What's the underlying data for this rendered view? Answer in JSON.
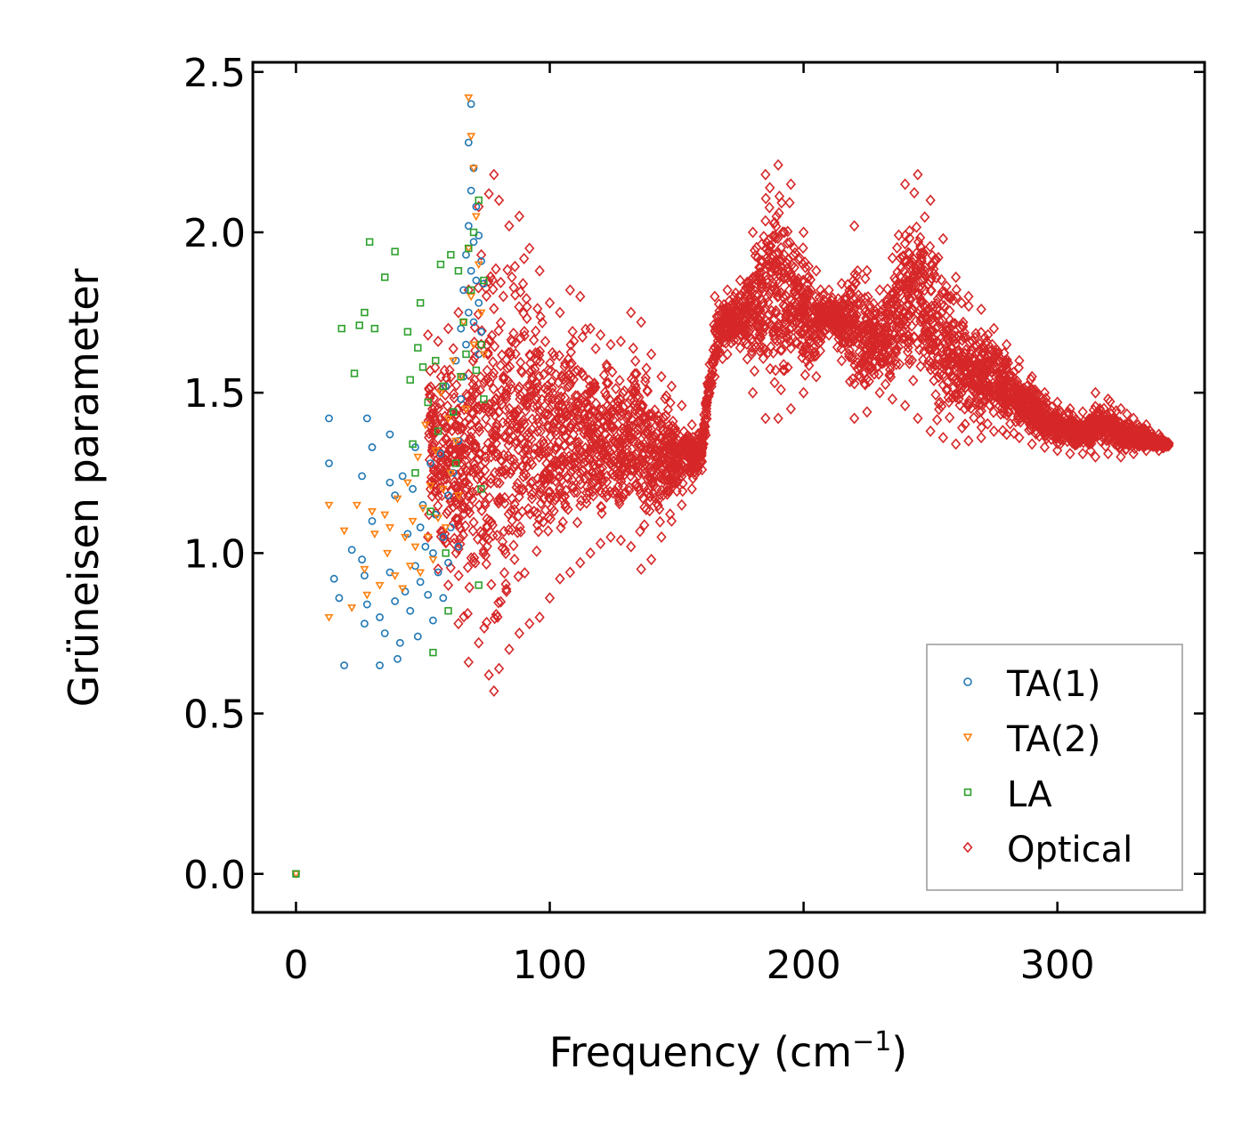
{
  "chart_data": {
    "type": "scatter",
    "title": "",
    "xlabel": "Frequency (cm",
    "xlabel_sup": "−1",
    "xlabel_close": ")",
    "ylabel": "Grüneisen parameter",
    "xlim": [
      -17,
      358
    ],
    "ylim": [
      -0.12,
      2.53
    ],
    "xticks": [
      0,
      100,
      200,
      300
    ],
    "xtick_labels": [
      "0",
      "100",
      "200",
      "300"
    ],
    "yticks": [
      0.0,
      0.5,
      1.0,
      1.5,
      2.0,
      2.5
    ],
    "ytick_labels": [
      "0.0",
      "0.5",
      "1.0",
      "1.5",
      "2.0",
      "2.5"
    ],
    "legend_position": "bottom-right",
    "series": [
      {
        "name": "TA(1)",
        "marker": "circle",
        "color": "#1f77b4",
        "x": [
          0,
          13,
          13,
          15,
          17,
          19,
          22,
          26,
          26,
          27,
          27,
          28,
          28,
          30,
          30,
          33,
          33,
          35,
          37,
          37,
          37,
          39,
          39,
          40,
          41,
          42,
          43,
          44,
          45,
          46,
          47,
          47,
          48,
          49,
          49,
          50,
          51,
          52,
          53,
          54,
          54,
          55,
          56,
          57,
          58,
          58,
          59,
          60,
          60,
          61,
          62,
          62,
          63,
          64,
          64,
          65,
          65,
          66,
          66,
          67,
          67,
          68,
          68,
          68,
          69,
          69,
          69,
          70,
          70,
          70,
          71,
          71,
          72,
          72,
          72,
          73,
          73,
          74
        ],
        "y": [
          0.0,
          1.42,
          1.28,
          0.92,
          0.86,
          0.65,
          1.01,
          1.24,
          0.98,
          0.93,
          0.78,
          1.42,
          0.84,
          1.33,
          1.1,
          0.8,
          0.65,
          0.75,
          1.37,
          1.22,
          0.94,
          0.85,
          1.18,
          0.67,
          0.72,
          1.24,
          0.88,
          1.06,
          0.82,
          1.2,
          0.96,
          1.33,
          0.74,
          1.08,
          0.91,
          1.15,
          1.02,
          0.87,
          1.28,
          1.0,
          0.79,
          1.12,
          0.94,
          1.31,
          1.05,
          0.86,
          1.52,
          1.18,
          0.97,
          1.08,
          1.44,
          1.25,
          1.6,
          1.35,
          1.02,
          1.7,
          1.48,
          1.82,
          1.55,
          1.93,
          1.65,
          2.28,
          2.02,
          1.75,
          2.4,
          2.13,
          1.88,
          2.2,
          1.97,
          1.72,
          2.08,
          1.85,
          1.99,
          1.78,
          1.62,
          1.91,
          1.69,
          1.84
        ]
      },
      {
        "name": "TA(2)",
        "marker": "triangle_down",
        "color": "#ff7f0e",
        "x": [
          0,
          13,
          13,
          19,
          22,
          24,
          27,
          28,
          30,
          31,
          33,
          35,
          36,
          37,
          39,
          40,
          42,
          43,
          44,
          45,
          46,
          47,
          48,
          49,
          50,
          51,
          52,
          53,
          54,
          55,
          56,
          57,
          58,
          59,
          60,
          61,
          62,
          63,
          64,
          65,
          66,
          67,
          68,
          68,
          69,
          69,
          70,
          70,
          71,
          72,
          73,
          74
        ],
        "y": [
          0.0,
          1.15,
          0.8,
          1.07,
          0.83,
          1.15,
          0.95,
          0.87,
          1.13,
          1.06,
          0.9,
          1.12,
          1.0,
          1.08,
          0.93,
          1.17,
          0.89,
          1.05,
          1.22,
          0.96,
          1.1,
          1.02,
          1.3,
          0.94,
          1.14,
          1.4,
          1.05,
          1.21,
          0.98,
          1.32,
          1.11,
          1.5,
          1.2,
          1.08,
          1.42,
          1.25,
          1.6,
          1.35,
          1.18,
          1.55,
          1.72,
          1.45,
          2.42,
          1.95,
          2.3,
          1.8,
          2.2,
          1.65,
          2.05,
          1.9,
          1.75,
          1.62
        ]
      },
      {
        "name": "LA",
        "marker": "square",
        "color": "#2ca02c",
        "x": [
          0,
          18,
          23,
          25,
          27,
          29,
          31,
          35,
          39,
          44,
          45,
          46,
          47,
          48,
          49,
          50,
          52,
          53,
          54,
          55,
          56,
          57,
          58,
          59,
          60,
          61,
          62,
          63,
          64,
          65,
          66,
          67,
          68,
          69,
          70,
          71,
          72,
          72,
          73,
          73,
          74,
          74
        ],
        "y": [
          0.0,
          1.7,
          1.56,
          1.71,
          1.75,
          1.97,
          1.7,
          1.86,
          1.94,
          1.69,
          1.54,
          1.34,
          1.25,
          1.64,
          1.78,
          1.58,
          1.47,
          1.13,
          0.69,
          1.6,
          1.38,
          1.9,
          1.52,
          1.0,
          0.82,
          1.93,
          1.44,
          1.28,
          1.88,
          1.55,
          1.72,
          1.62,
          1.95,
          1.82,
          2.0,
          1.57,
          2.1,
          0.9,
          1.65,
          1.2,
          1.85,
          1.48
        ]
      },
      {
        "name": "Optical",
        "marker": "diamond",
        "color": "#d62728",
        "dense": true,
        "x": [
          52,
          56,
          60,
          64,
          68,
          72,
          76,
          78,
          80,
          84,
          88,
          92,
          96,
          100,
          104,
          108,
          112,
          116,
          120,
          124,
          128,
          132,
          136,
          140,
          144,
          148,
          152,
          156,
          160,
          165,
          170,
          175,
          180,
          185,
          190,
          195,
          200,
          205,
          210,
          215,
          220,
          225,
          230,
          235,
          240,
          245,
          250,
          255,
          260,
          265,
          270,
          275,
          280,
          285,
          290,
          295,
          300,
          305,
          310,
          315,
          320,
          325,
          330,
          335,
          340,
          344
        ],
        "y_min": [
          1.05,
          0.95,
          0.9,
          0.78,
          0.66,
          0.72,
          0.62,
          0.57,
          0.64,
          0.7,
          0.75,
          0.78,
          0.8,
          0.86,
          0.92,
          0.94,
          0.97,
          1.0,
          1.03,
          1.05,
          1.04,
          1.02,
          0.95,
          0.98,
          1.05,
          1.1,
          1.15,
          1.2,
          1.26,
          1.55,
          1.62,
          1.64,
          1.5,
          1.42,
          1.42,
          1.45,
          1.5,
          1.55,
          1.68,
          1.6,
          1.42,
          1.44,
          1.5,
          1.48,
          1.46,
          1.42,
          1.38,
          1.36,
          1.34,
          1.35,
          1.36,
          1.38,
          1.37,
          1.36,
          1.34,
          1.33,
          1.32,
          1.31,
          1.31,
          1.3,
          1.31,
          1.3,
          1.31,
          1.32,
          1.32,
          1.33
        ],
        "y_max": [
          1.68,
          1.66,
          1.7,
          1.75,
          1.82,
          2.08,
          2.12,
          2.18,
          2.1,
          2.02,
          2.05,
          1.95,
          1.88,
          1.78,
          1.75,
          1.82,
          1.8,
          1.7,
          1.68,
          1.65,
          1.66,
          1.75,
          1.72,
          1.62,
          1.55,
          1.52,
          1.46,
          1.4,
          1.38,
          1.8,
          1.82,
          1.85,
          2.0,
          2.18,
          2.21,
          2.15,
          2.0,
          1.88,
          1.82,
          1.84,
          2.02,
          1.88,
          1.82,
          1.92,
          2.15,
          2.18,
          2.1,
          1.98,
          1.86,
          1.8,
          1.76,
          1.7,
          1.65,
          1.6,
          1.55,
          1.5,
          1.47,
          1.45,
          1.44,
          1.5,
          1.48,
          1.45,
          1.42,
          1.4,
          1.37,
          1.35
        ]
      }
    ]
  }
}
